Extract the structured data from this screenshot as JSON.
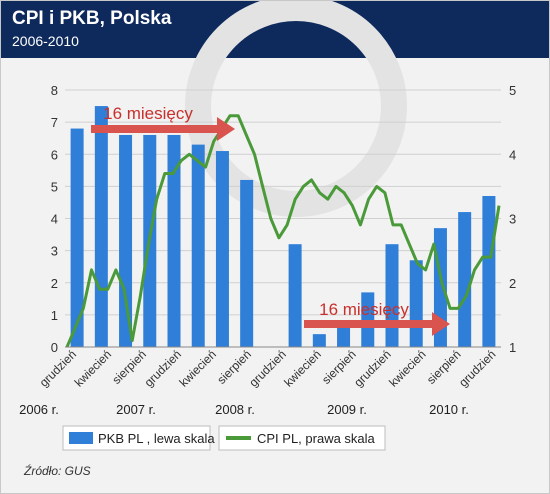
{
  "header": {
    "title": "CPI i PKB, Polska",
    "subtitle": "2006-2010"
  },
  "source": "Źródło: GUS",
  "colors": {
    "header_bg": "#0e2a5c",
    "bar": "#2f7ed8",
    "line": "#4a9a3a",
    "arrow": "#d9534f",
    "arrow_text": "#c9302c"
  },
  "chart_data": {
    "type": "bar+line",
    "left_axis": {
      "ylim": [
        0,
        8
      ],
      "ticks": [
        "0",
        "1",
        "2",
        "3",
        "4",
        "5",
        "6",
        "7",
        "8"
      ]
    },
    "right_axis": {
      "ylim": [
        1,
        5
      ],
      "ticks": [
        "1",
        "2",
        "3",
        "4",
        "5"
      ]
    },
    "x_tick_labels": [
      "grudzień",
      "kwiecień",
      "sierpień",
      "grudzień",
      "kwiecień",
      "sierpień",
      "grudzień",
      "kwiecień",
      "sierpień",
      "grudzień",
      "kwiecień",
      "sierpień",
      "grudzień"
    ],
    "year_labels": [
      "2006 r.",
      "2007 r.",
      "2008 r.",
      "2009 r.",
      "2010 r."
    ],
    "bar_series": {
      "name": "PKB PL , lewa skala",
      "values": [
        6.8,
        7.5,
        6.6,
        6.6,
        6.6,
        6.3,
        6.1,
        5.2,
        null,
        3.2,
        0.4,
        0.8,
        1.7,
        3.2,
        2.7,
        3.7,
        4.2,
        4.7
      ]
    },
    "line_series": {
      "name": "CPI PL, prawa skala",
      "values": [
        1.0,
        1.3,
        1.6,
        2.2,
        1.9,
        1.9,
        2.2,
        1.9,
        1.1,
        1.8,
        2.6,
        3.3,
        3.7,
        3.7,
        3.9,
        4.0,
        3.9,
        3.8,
        4.2,
        4.4,
        4.6,
        4.6,
        4.3,
        4.0,
        3.5,
        3.0,
        2.7,
        2.9,
        3.3,
        3.5,
        3.6,
        3.4,
        3.3,
        3.5,
        3.4,
        3.2,
        2.9,
        3.3,
        3.5,
        3.4,
        2.9,
        2.9,
        2.6,
        2.3,
        2.2,
        2.6,
        2.0,
        1.6,
        1.6,
        1.8,
        2.2,
        2.4,
        2.4,
        3.2
      ]
    },
    "annotations": [
      "16 miesięcy",
      "16 miesięcy"
    ],
    "legend": {
      "placement": "bottom"
    }
  }
}
